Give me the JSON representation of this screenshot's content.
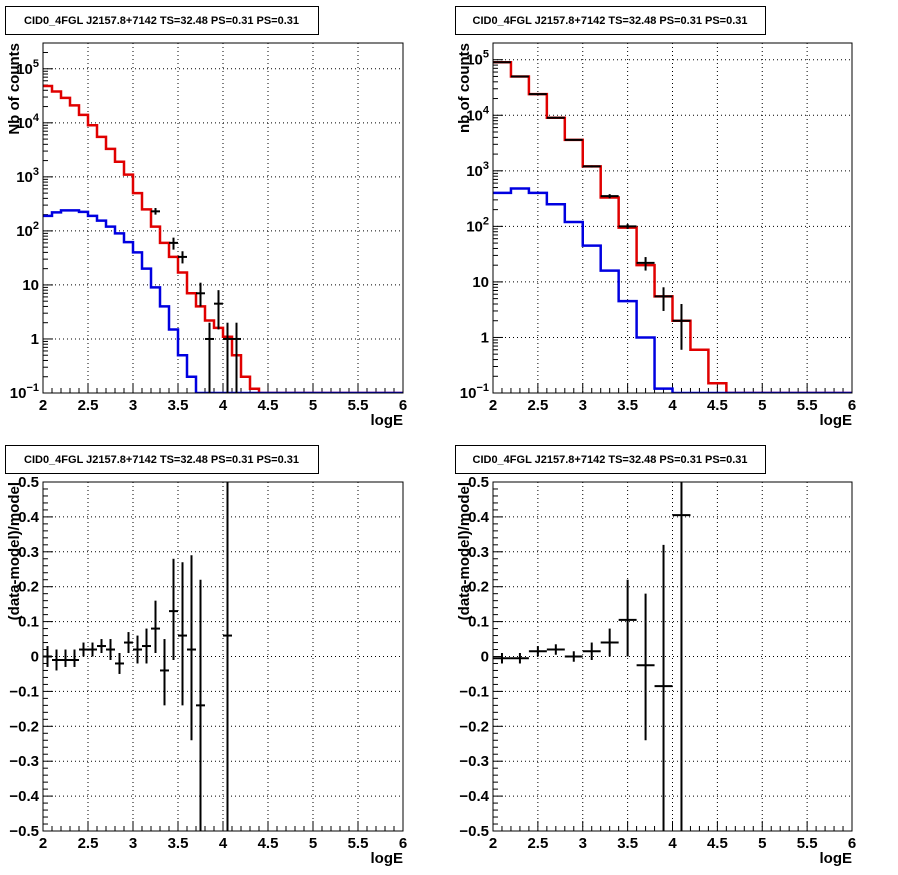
{
  "chart_data": [
    {
      "type": "line",
      "title": "CID0_4FGL J2157.8+7142 TS=32.48 PS=0.31 PS=0.31",
      "xlabel": "logE",
      "ylabel": "Nb of counts",
      "xlim": [
        2,
        6
      ],
      "ylim": [
        0.1,
        300000
      ],
      "y_scale": "log",
      "x_ticks": [
        "2",
        "2.5",
        "3",
        "3.5",
        "4",
        "4.5",
        "5",
        "5.5",
        "6"
      ],
      "y_ticks": [
        {
          "value": 0.1,
          "base": "10",
          "exp": "−1"
        },
        {
          "value": 1,
          "label": "1"
        },
        {
          "value": 10,
          "label": "10"
        },
        {
          "value": 100,
          "base": "10",
          "exp": "2"
        },
        {
          "value": 1000,
          "base": "10",
          "exp": "3"
        },
        {
          "value": 10000,
          "base": "10",
          "exp": "4"
        },
        {
          "value": 100000,
          "base": "10",
          "exp": "5"
        }
      ],
      "grid": true,
      "series": [
        {
          "kind": "step",
          "color": "#e00000",
          "edges": [
            2.0,
            2.1,
            2.2,
            2.3,
            2.4,
            2.5,
            2.6,
            2.7,
            2.8,
            2.9,
            3.0,
            3.1,
            3.2,
            3.3,
            3.4,
            3.5,
            3.6,
            3.7,
            3.8,
            3.9,
            4.0,
            4.1,
            4.2,
            4.3,
            4.4,
            4.5,
            6.0
          ],
          "values": [
            48000,
            38000,
            29000,
            21000,
            14000,
            9000,
            5500,
            3300,
            1900,
            1100,
            500,
            250,
            120,
            60,
            33,
            17,
            7,
            4,
            2.2,
            1.6,
            1.1,
            0.5,
            0.2,
            0.12,
            0.1,
            0.1
          ]
        },
        {
          "kind": "step",
          "color": "#0000e0",
          "edges": [
            2.0,
            2.1,
            2.2,
            2.3,
            2.4,
            2.5,
            2.6,
            2.7,
            2.8,
            2.9,
            3.0,
            3.1,
            3.2,
            3.3,
            3.4,
            3.5,
            3.6,
            3.7,
            3.8,
            3.9,
            4.0,
            6.0
          ],
          "values": [
            190,
            220,
            240,
            240,
            225,
            190,
            155,
            120,
            90,
            62,
            40,
            20,
            9,
            4,
            1.5,
            0.5,
            0.2,
            0.1,
            0.1,
            0.1,
            0.1
          ]
        },
        {
          "kind": "points",
          "color": "#000000",
          "x": [
            3.25,
            3.45,
            3.55,
            3.75,
            3.85,
            3.95,
            4.05,
            4.15
          ],
          "xerr": 0.05,
          "y": [
            230,
            60,
            33,
            7,
            1,
            4.5,
            1,
            1
          ],
          "ylo": [
            200,
            45,
            25,
            4,
            0.1,
            1.5,
            0.1,
            0.1
          ],
          "yhi": [
            265,
            75,
            42,
            11,
            2,
            8,
            2,
            2
          ]
        }
      ]
    },
    {
      "type": "line",
      "title": "CID0_4FGL J2157.8+7142 TS=32.48 PS=0.31 PS=0.31",
      "xlabel": "logE",
      "ylabel": "nb of counts",
      "xlim": [
        2,
        6
      ],
      "ylim": [
        0.1,
        200000
      ],
      "y_scale": "log",
      "x_ticks": [
        "2",
        "2.5",
        "3",
        "3.5",
        "4",
        "4.5",
        "5",
        "5.5",
        "6"
      ],
      "y_ticks": [
        {
          "value": 0.1,
          "base": "10",
          "exp": "−1"
        },
        {
          "value": 1,
          "label": "1"
        },
        {
          "value": 10,
          "label": "10"
        },
        {
          "value": 100,
          "base": "10",
          "exp": "2"
        },
        {
          "value": 1000,
          "base": "10",
          "exp": "3"
        },
        {
          "value": 10000,
          "base": "10",
          "exp": "4"
        },
        {
          "value": 100000,
          "base": "10",
          "exp": "5"
        }
      ],
      "grid": true,
      "series": [
        {
          "kind": "step",
          "color": "#e00000",
          "edges": [
            2.0,
            2.2,
            2.4,
            2.6,
            2.8,
            3.0,
            3.2,
            3.4,
            3.6,
            3.8,
            4.0,
            4.2,
            4.4,
            4.6,
            6.0
          ],
          "values": [
            90000,
            50000,
            24000,
            9000,
            3600,
            1200,
            330,
            95,
            20,
            5.5,
            2,
            0.6,
            0.15,
            0.1
          ]
        },
        {
          "kind": "step",
          "color": "#0000e0",
          "edges": [
            2.0,
            2.2,
            2.4,
            2.6,
            2.8,
            3.0,
            3.2,
            3.4,
            3.6,
            3.8,
            4.0,
            6.0
          ],
          "values": [
            400,
            480,
            400,
            250,
            120,
            45,
            16,
            4.5,
            1,
            0.12,
            0.1
          ]
        },
        {
          "kind": "points",
          "color": "#000000",
          "x": [
            2.1,
            2.3,
            2.5,
            2.7,
            2.9,
            3.1,
            3.3,
            3.5,
            3.7,
            3.9,
            4.1
          ],
          "xerr": 0.1,
          "y": [
            90000,
            50000,
            24000,
            9000,
            3600,
            1200,
            350,
            100,
            22,
            5.5,
            2
          ],
          "ylo": [
            88000,
            49000,
            23500,
            8800,
            3500,
            1150,
            320,
            90,
            16,
            3,
            0.6
          ],
          "yhi": [
            92000,
            51000,
            24500,
            9200,
            3700,
            1250,
            380,
            110,
            28,
            8,
            4
          ]
        }
      ]
    },
    {
      "type": "scatter",
      "title": "CID0_4FGL J2157.8+7142 TS=32.48 PS=0.31 PS=0.31",
      "xlabel": "logE",
      "ylabel": "(data-model)/model",
      "xlim": [
        2,
        6
      ],
      "ylim": [
        -0.5,
        0.5
      ],
      "y_scale": "linear",
      "x_ticks": [
        "2",
        "2.5",
        "3",
        "3.5",
        "4",
        "4.5",
        "5",
        "5.5",
        "6"
      ],
      "y_ticks": [
        {
          "value": -0.5,
          "label": "−0.5"
        },
        {
          "value": -0.4,
          "label": "−0.4"
        },
        {
          "value": -0.3,
          "label": "−0.3"
        },
        {
          "value": -0.2,
          "label": "−0.2"
        },
        {
          "value": -0.1,
          "label": "−0.1"
        },
        {
          "value": 0,
          "label": "0"
        },
        {
          "value": 0.1,
          "label": "0.1"
        },
        {
          "value": 0.2,
          "label": "0.2"
        },
        {
          "value": 0.3,
          "label": "0.3"
        },
        {
          "value": 0.4,
          "label": "0.4"
        },
        {
          "value": 0.5,
          "label": "0.5"
        }
      ],
      "grid": true,
      "series": [
        {
          "kind": "points",
          "color": "#000000",
          "x": [
            2.05,
            2.15,
            2.25,
            2.35,
            2.45,
            2.55,
            2.65,
            2.75,
            2.85,
            2.95,
            3.05,
            3.15,
            3.25,
            3.35,
            3.45,
            3.55,
            3.65,
            3.75,
            4.05
          ],
          "xerr": 0.05,
          "y": [
            0,
            -0.01,
            -0.01,
            -0.01,
            0.02,
            0.02,
            0.03,
            0.02,
            -0.02,
            0.04,
            0.02,
            0.03,
            0.08,
            -0.04,
            0.13,
            0.06,
            0.02,
            -0.14,
            0.06
          ],
          "ylo": [
            -0.03,
            -0.04,
            -0.03,
            -0.03,
            0,
            0,
            0.01,
            -0.01,
            -0.05,
            0.01,
            -0.02,
            -0.02,
            0.01,
            -0.14,
            -0.01,
            -0.14,
            -0.24,
            -0.5,
            -0.5
          ],
          "yhi": [
            0.03,
            0.02,
            0.02,
            0.02,
            0.04,
            0.04,
            0.05,
            0.05,
            0.01,
            0.07,
            0.06,
            0.08,
            0.16,
            0.05,
            0.28,
            0.27,
            0.29,
            0.22,
            0.5
          ]
        }
      ]
    },
    {
      "type": "scatter",
      "title": "CID0_4FGL J2157.8+7142 TS=32.48 PS=0.31 PS=0.31",
      "xlabel": "logE",
      "ylabel": "(data-model)/model",
      "xlim": [
        2,
        6
      ],
      "ylim": [
        -0.5,
        0.5
      ],
      "y_scale": "linear",
      "x_ticks": [
        "2",
        "2.5",
        "3",
        "3.5",
        "4",
        "4.5",
        "5",
        "5.5",
        "6"
      ],
      "y_ticks": [
        {
          "value": -0.5,
          "label": "−0.5"
        },
        {
          "value": -0.4,
          "label": "−0.4"
        },
        {
          "value": -0.3,
          "label": "−0.3"
        },
        {
          "value": -0.2,
          "label": "−0.2"
        },
        {
          "value": -0.1,
          "label": "−0.1"
        },
        {
          "value": 0,
          "label": "0"
        },
        {
          "value": 0.1,
          "label": "0.1"
        },
        {
          "value": 0.2,
          "label": "0.2"
        },
        {
          "value": 0.3,
          "label": "0.3"
        },
        {
          "value": 0.4,
          "label": "0.4"
        },
        {
          "value": 0.5,
          "label": "0.5"
        }
      ],
      "grid": true,
      "series": [
        {
          "kind": "points",
          "color": "#000000",
          "x": [
            2.1,
            2.3,
            2.5,
            2.7,
            2.9,
            3.1,
            3.3,
            3.5,
            3.7,
            3.9,
            4.1
          ],
          "xerr": 0.1,
          "y": [
            -0.005,
            -0.005,
            0.015,
            0.02,
            0,
            0.015,
            0.04,
            0.105,
            -0.025,
            -0.085,
            0.405
          ],
          "ylo": [
            -0.02,
            -0.02,
            0,
            0.005,
            -0.015,
            -0.01,
            0,
            0,
            -0.24,
            -0.5,
            -0.5
          ],
          "yhi": [
            0.01,
            0.01,
            0.03,
            0.035,
            0.015,
            0.04,
            0.08,
            0.22,
            0.18,
            0.32,
            0.5
          ]
        }
      ]
    }
  ]
}
